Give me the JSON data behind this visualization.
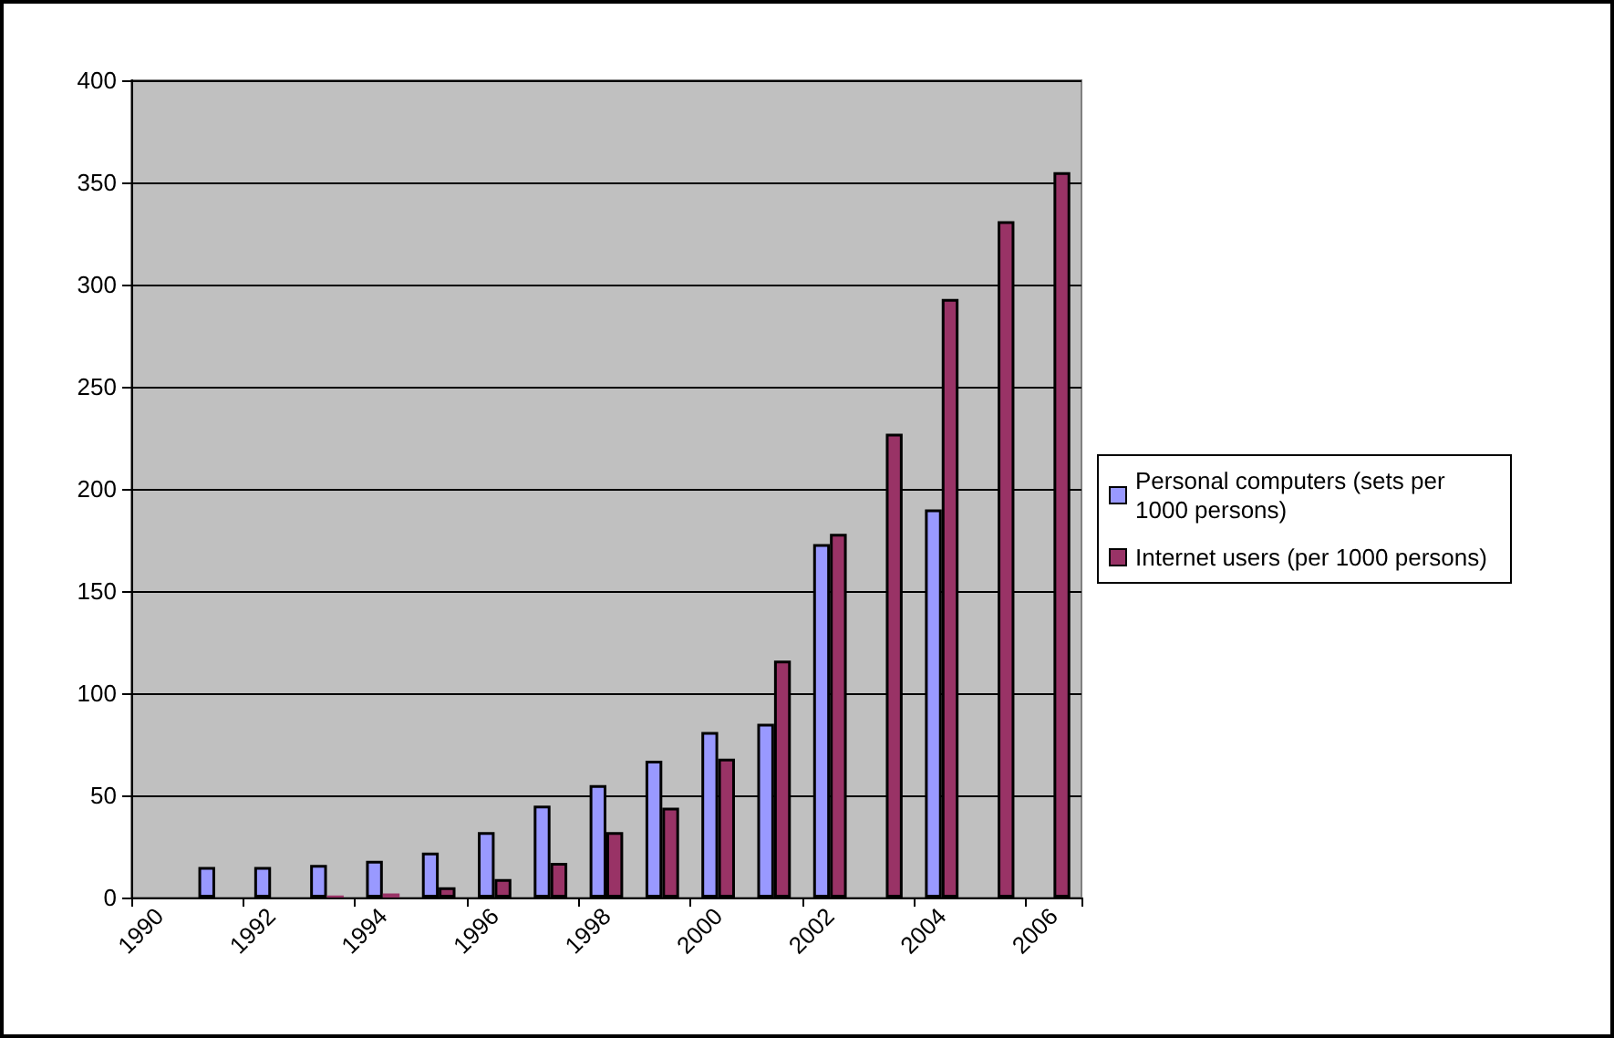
{
  "chart_data": {
    "type": "bar",
    "categories": [
      "1990",
      null,
      "1992",
      null,
      "1994",
      null,
      "1996",
      null,
      "1998",
      null,
      "2000",
      null,
      "2002",
      null,
      "2004",
      null,
      "2006"
    ],
    "series": [
      {
        "name": "Personal computers (sets per 1000 persons)",
        "color": "#9999ff",
        "values": [
          null,
          15,
          15,
          16,
          18,
          22,
          32,
          45,
          55,
          67,
          81,
          85,
          173,
          null,
          190,
          null,
          null
        ]
      },
      {
        "name": "Internet users (per 1000 persons)",
        "color": "#993366",
        "values": [
          null,
          null,
          null,
          1,
          2,
          5,
          9,
          17,
          32,
          44,
          68,
          116,
          178,
          227,
          293,
          331,
          355
        ]
      }
    ],
    "ylim": [
      0,
      400
    ],
    "yticks": [
      0,
      50,
      100,
      150,
      200,
      250,
      300,
      350,
      400
    ],
    "grid": "y",
    "legend": "right"
  }
}
